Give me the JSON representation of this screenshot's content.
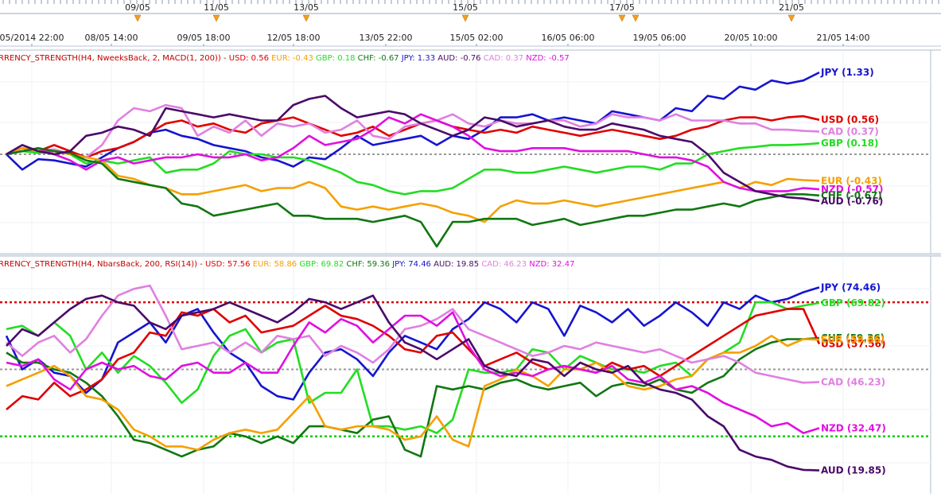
{
  "top_axis": {
    "markers": [
      "09/05",
      "11/05",
      "13/05",
      "15/05",
      "17/05",
      "21/05"
    ],
    "dates": [
      "05/2014 22:00",
      "08/05 14:00",
      "09/05 18:00",
      "12/05 18:00",
      "13/05 22:00",
      "15/05 02:00",
      "16/05 06:00",
      "19/05 06:00",
      "20/05 10:00",
      "21/05 14:00"
    ]
  },
  "colors": {
    "USD": "#e00000",
    "EUR": "#f5a000",
    "GBP": "#22dd22",
    "CHF": "#117711",
    "JPY": "#1515d0",
    "AUD": "#4a0a6a",
    "CAD": "#e080e0",
    "NZD": "#e010e0",
    "title": "#c00000",
    "upper_level": "#dd0000",
    "lower_level": "#00cc00",
    "mid_level": "#999999"
  },
  "chart_data": [
    {
      "type": "line",
      "title": "RRENCY_STRENGTH(H4, NweeksBack, 2, MACD(1, 200)) -",
      "legend": [
        {
          "name": "USD",
          "text": "USD: 0.56"
        },
        {
          "name": "EUR",
          "text": "EUR: -0.43"
        },
        {
          "name": "GBP",
          "text": "GBP: 0.18"
        },
        {
          "name": "CHF",
          "text": "CHF: -0.67"
        },
        {
          "name": "JPY",
          "text": "JPY: 1.33"
        },
        {
          "name": "AUD",
          "text": "AUD: -0.76"
        },
        {
          "name": "CAD",
          "text": "CAD: 0.37"
        },
        {
          "name": "NZD",
          "text": "NZD: -0.57"
        }
      ],
      "ylim": [
        -1.5,
        1.5
      ],
      "hlines": [
        0
      ],
      "series": [
        {
          "name": "JPY",
          "end_label": "JPY (1.33)",
          "values": [
            0,
            -0.25,
            -0.08,
            -0.1,
            -0.15,
            -0.2,
            -0.05,
            0.1,
            0.2,
            0.35,
            0.4,
            0.3,
            0.25,
            0.15,
            0.1,
            0.05,
            -0.05,
            -0.1,
            -0.2,
            -0.05,
            -0.08,
            0.1,
            0.3,
            0.15,
            0.2,
            0.25,
            0.3,
            0.15,
            0.3,
            0.25,
            0.4,
            0.6,
            0.6,
            0.65,
            0.55,
            0.6,
            0.55,
            0.5,
            0.7,
            0.65,
            0.6,
            0.55,
            0.75,
            0.7,
            0.95,
            0.9,
            1.1,
            1.05,
            1.2,
            1.15,
            1.2,
            1.33
          ]
        },
        {
          "name": "USD",
          "end_label": "USD (0.56)",
          "values": [
            0,
            0.1,
            0.05,
            0.15,
            0.05,
            -0.05,
            0.05,
            0.1,
            0.2,
            0.35,
            0.5,
            0.55,
            0.45,
            0.5,
            0.4,
            0.35,
            0.5,
            0.55,
            0.6,
            0.5,
            0.4,
            0.3,
            0.35,
            0.45,
            0.3,
            0.4,
            0.5,
            0.55,
            0.45,
            0.4,
            0.35,
            0.4,
            0.35,
            0.45,
            0.4,
            0.35,
            0.3,
            0.35,
            0.4,
            0.35,
            0.3,
            0.25,
            0.3,
            0.4,
            0.45,
            0.55,
            0.6,
            0.6,
            0.55,
            0.6,
            0.62,
            0.56
          ]
        },
        {
          "name": "CAD",
          "end_label": "CAD (0.37)",
          "values": [
            0,
            0.05,
            0.05,
            0.08,
            0,
            -0.05,
            0.15,
            0.55,
            0.75,
            0.7,
            0.8,
            0.75,
            0.3,
            0.45,
            0.35,
            0.55,
            0.3,
            0.5,
            0.45,
            0.5,
            0.35,
            0.4,
            0.55,
            0.3,
            0.25,
            0.45,
            0.5,
            0.55,
            0.65,
            0.5,
            0.45,
            0.55,
            0.5,
            0.5,
            0.55,
            0.55,
            0.45,
            0.5,
            0.65,
            0.6,
            0.6,
            0.55,
            0.65,
            0.55,
            0.55,
            0.55,
            0.5,
            0.5,
            0.4,
            0.4,
            0.38,
            0.37
          ]
        },
        {
          "name": "GBP",
          "end_label": "GBP (0.18)",
          "values": [
            0,
            0.05,
            0.02,
            0.05,
            0,
            -0.15,
            -0.1,
            -0.15,
            -0.1,
            -0.05,
            -0.3,
            -0.25,
            -0.25,
            -0.15,
            0.05,
            0,
            0,
            -0.05,
            -0.05,
            -0.1,
            -0.2,
            -0.3,
            -0.45,
            -0.5,
            -0.6,
            -0.65,
            -0.6,
            -0.6,
            -0.55,
            -0.4,
            -0.25,
            -0.25,
            -0.3,
            -0.3,
            -0.25,
            -0.2,
            -0.25,
            -0.3,
            -0.25,
            -0.2,
            -0.2,
            -0.25,
            -0.15,
            -0.15,
            0,
            0.05,
            0.1,
            0.12,
            0.15,
            0.15,
            0.16,
            0.18
          ]
        },
        {
          "name": "EUR",
          "end_label": "EUR (-0.43)",
          "values": [
            0,
            0.1,
            0.05,
            0.05,
            0,
            -0.05,
            -0.1,
            -0.35,
            -0.4,
            -0.5,
            -0.55,
            -0.65,
            -0.65,
            -0.6,
            -0.55,
            -0.5,
            -0.6,
            -0.55,
            -0.55,
            -0.45,
            -0.55,
            -0.85,
            -0.9,
            -0.85,
            -0.9,
            -0.85,
            -0.8,
            -0.85,
            -0.95,
            -1.0,
            -1.1,
            -0.85,
            -0.75,
            -0.8,
            -0.8,
            -0.75,
            -0.8,
            -0.85,
            -0.8,
            -0.75,
            -0.7,
            -0.65,
            -0.6,
            -0.55,
            -0.5,
            -0.45,
            -0.55,
            -0.45,
            -0.5,
            -0.4,
            -0.42,
            -0.43
          ]
        },
        {
          "name": "NZD",
          "end_label": "NZD (-0.57)",
          "values": [
            0,
            0.05,
            0.1,
            0,
            -0.1,
            -0.25,
            -0.1,
            -0.05,
            -0.15,
            -0.1,
            -0.05,
            -0.05,
            0,
            -0.05,
            -0.05,
            0,
            -0.1,
            -0.05,
            0.1,
            0.3,
            0.15,
            0.2,
            0.25,
            0.4,
            0.6,
            0.5,
            0.65,
            0.55,
            0.45,
            0.3,
            0.1,
            0.05,
            0.05,
            0.1,
            0.1,
            0.1,
            0.05,
            0.05,
            0.05,
            0.05,
            0.0,
            -0.05,
            -0.05,
            -0.1,
            -0.2,
            -0.45,
            -0.55,
            -0.6,
            -0.6,
            -0.6,
            -0.55,
            -0.57
          ]
        },
        {
          "name": "CHF",
          "end_label": "CHF (-0.67)",
          "values": [
            0,
            0.05,
            0.1,
            0.05,
            0.02,
            -0.1,
            -0.15,
            -0.4,
            -0.45,
            -0.5,
            -0.55,
            -0.8,
            -0.85,
            -1.0,
            -0.95,
            -0.9,
            -0.85,
            -0.8,
            -1.0,
            -1.0,
            -1.05,
            -1.05,
            -1.05,
            -1.1,
            -1.05,
            -1.0,
            -1.1,
            -1.5,
            -1.1,
            -1.1,
            -1.05,
            -1.05,
            -1.05,
            -1.15,
            -1.1,
            -1.05,
            -1.15,
            -1.1,
            -1.05,
            -1.0,
            -1.0,
            -0.95,
            -0.9,
            -0.9,
            -0.85,
            -0.8,
            -0.85,
            -0.75,
            -0.7,
            -0.65,
            -0.65,
            -0.67
          ]
        },
        {
          "name": "AUD",
          "end_label": "AUD (-0.76)",
          "values": [
            0,
            0.15,
            0.05,
            0,
            0.05,
            0.3,
            0.35,
            0.45,
            0.4,
            0.3,
            0.75,
            0.7,
            0.65,
            0.6,
            0.65,
            0.6,
            0.55,
            0.55,
            0.8,
            0.9,
            0.95,
            0.75,
            0.6,
            0.65,
            0.7,
            0.65,
            0.5,
            0.4,
            0.3,
            0.4,
            0.6,
            0.55,
            0.45,
            0.5,
            0.55,
            0.45,
            0.4,
            0.4,
            0.5,
            0.45,
            0.4,
            0.3,
            0.25,
            0.2,
            0,
            -0.3,
            -0.45,
            -0.6,
            -0.65,
            -0.7,
            -0.72,
            -0.76
          ]
        }
      ]
    },
    {
      "type": "line",
      "title": "RRENCY_STRENGTH(H4, NbarsBack, 200, RSI(14)) -",
      "legend": [
        {
          "name": "USD",
          "text": "USD: 57.56"
        },
        {
          "name": "EUR",
          "text": "EUR: 58.86"
        },
        {
          "name": "GBP",
          "text": "GBP: 69.82"
        },
        {
          "name": "CHF",
          "text": "CHF: 59.36"
        },
        {
          "name": "JPY",
          "text": "JPY: 74.46"
        },
        {
          "name": "AUD",
          "text": "AUD: 19.85"
        },
        {
          "name": "CAD",
          "text": "CAD: 46.23"
        },
        {
          "name": "NZD",
          "text": "NZD: 32.47"
        }
      ],
      "ylim": [
        15,
        80
      ],
      "hlines": [
        70,
        50,
        30
      ],
      "series": [
        {
          "name": "JPY",
          "end_label": "JPY (74.46)",
          "values": [
            60,
            50,
            53,
            49,
            48,
            43,
            47,
            58,
            61,
            64,
            58,
            66,
            68,
            61,
            55,
            52,
            45,
            42,
            41,
            49,
            55,
            56,
            53,
            48,
            55,
            60,
            58,
            56,
            62,
            65,
            70,
            68,
            64,
            70,
            68,
            60,
            69,
            67,
            64,
            68,
            63,
            66,
            70,
            67,
            63,
            70,
            68,
            72,
            70,
            71,
            73,
            74.46
          ]
        },
        {
          "name": "GBP",
          "end_label": "GBP (69.82)",
          "values": [
            62,
            63,
            60,
            64,
            60,
            50,
            55,
            49,
            54,
            51,
            46,
            40,
            44,
            54,
            60,
            62,
            55,
            58,
            59,
            40,
            43,
            43,
            50,
            33,
            33,
            32,
            33,
            31,
            35,
            50,
            49,
            49,
            50,
            56,
            55,
            50,
            54,
            52,
            50,
            50,
            49,
            51,
            52,
            48,
            53,
            55,
            58,
            70,
            70,
            68,
            69,
            69.82
          ]
        },
        {
          "name": "CHF",
          "end_label": "CHF (59.36)",
          "values": [
            55,
            52,
            52,
            50,
            49,
            46,
            42,
            36,
            29,
            28,
            26,
            24,
            26,
            27,
            31,
            30,
            28,
            30,
            28,
            33,
            33,
            32,
            31,
            35,
            36,
            26,
            24,
            45,
            44,
            45,
            44,
            46,
            47,
            45,
            44,
            45,
            46,
            42,
            45,
            46,
            45,
            47,
            44,
            43,
            46,
            48,
            53,
            56,
            58,
            59,
            59,
            59.36
          ]
        },
        {
          "name": "USD",
          "end_label": "USD (57.56)",
          "values": [
            38,
            42,
            41,
            46,
            42,
            44,
            47,
            53,
            55,
            61,
            60,
            67,
            66,
            68,
            64,
            66,
            61,
            62,
            63,
            66,
            69,
            66,
            65,
            63,
            60,
            56,
            55,
            60,
            61,
            56,
            51,
            53,
            55,
            52,
            50,
            51,
            50,
            49,
            52,
            50,
            51,
            48,
            51,
            54,
            57,
            60,
            63,
            66,
            67,
            68,
            68,
            57.56
          ]
        },
        {
          "name": "EUR",
          "end_label": "EUR (58.86)",
          "values": [
            45,
            47,
            49,
            51,
            48,
            42,
            41,
            38,
            32,
            30,
            27,
            27,
            26,
            29,
            31,
            32,
            31,
            32,
            37,
            42,
            33,
            32,
            33,
            33,
            32,
            29,
            30,
            36,
            29,
            27,
            45,
            47,
            50,
            48,
            45,
            50,
            50,
            52,
            49,
            45,
            44,
            45,
            47,
            48,
            53,
            55,
            55,
            57,
            60,
            57,
            59,
            58.86
          ]
        },
        {
          "name": "CAD",
          "end_label": "CAD (46.23)",
          "values": [
            58,
            54,
            58,
            60,
            55,
            59,
            66,
            72,
            74,
            75,
            66,
            56,
            57,
            58,
            55,
            58,
            55,
            60,
            59,
            60,
            54,
            57,
            55,
            52,
            56,
            62,
            63,
            65,
            68,
            62,
            60,
            58,
            56,
            54,
            55,
            57,
            56,
            58,
            57,
            56,
            55,
            56,
            54,
            52,
            53,
            54,
            52,
            49,
            48,
            47,
            46,
            46.23
          ]
        },
        {
          "name": "NZD",
          "end_label": "NZD (32.47)",
          "values": [
            52,
            51,
            53,
            47,
            44,
            50,
            52,
            50,
            51,
            48,
            47,
            51,
            52,
            49,
            49,
            52,
            49,
            49,
            57,
            64,
            61,
            65,
            63,
            58,
            62,
            66,
            66,
            63,
            67,
            57,
            50,
            48,
            49,
            48,
            50,
            51,
            50,
            49,
            51,
            47,
            46,
            48,
            44,
            45,
            43,
            40,
            38,
            36,
            33,
            34,
            31,
            32.47
          ]
        },
        {
          "name": "AUD",
          "end_label": "AUD (19.85)",
          "values": [
            57,
            62,
            60,
            64,
            68,
            71,
            72,
            70,
            69,
            64,
            62,
            66,
            67,
            68,
            70,
            68,
            66,
            64,
            67,
            71,
            70,
            68,
            70,
            72,
            64,
            58,
            56,
            53,
            56,
            59,
            51,
            49,
            48,
            53,
            52,
            48,
            52,
            50,
            49,
            51,
            46,
            44,
            43,
            41,
            36,
            33,
            26,
            24,
            23,
            21,
            20,
            19.85
          ]
        }
      ]
    }
  ]
}
